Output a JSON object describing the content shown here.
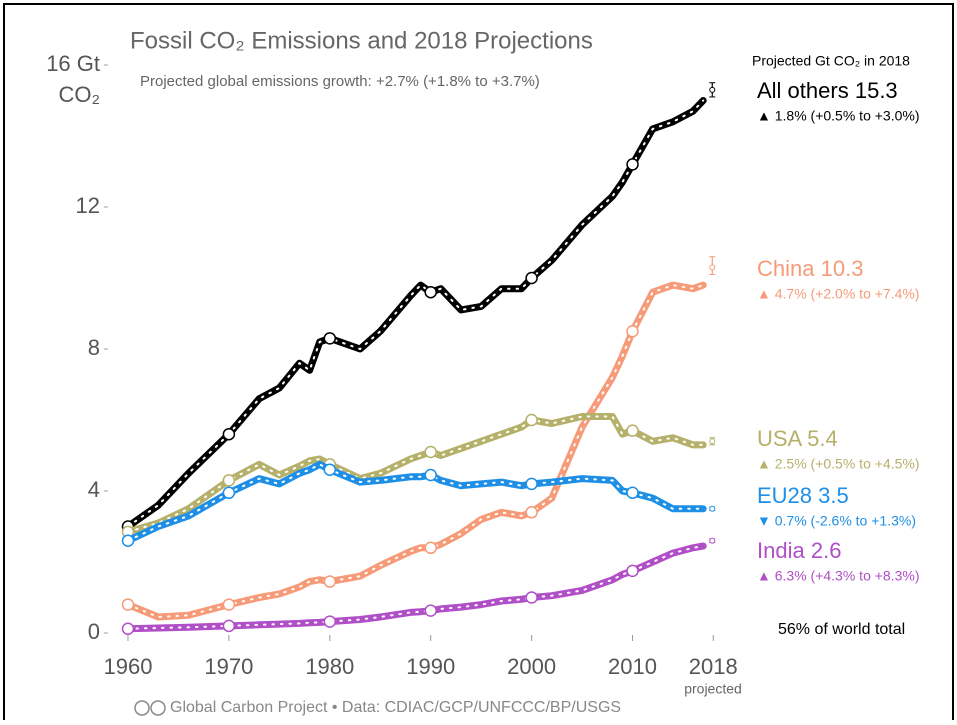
{
  "chart_data": {
    "type": "line",
    "title": "Fossil CO₂ Emissions and 2018 Projections",
    "subtitle": "Projected global emissions growth: +2.7% (+1.8% to +3.7%)",
    "y_unit": "CO₂",
    "legend_title": "Projected Gt CO₂ in 2018",
    "note": "56% of world total",
    "x_note": "projected",
    "footer": "Global Carbon Project  •  Data: CDIAC/GCP/UNFCCC/BP/USGS",
    "x": [
      1960,
      1963,
      1966,
      1970,
      1973,
      1975,
      1977,
      1978,
      1979,
      1980,
      1983,
      1985,
      1988,
      1989,
      1990,
      1991,
      1993,
      1995,
      1997,
      1999,
      2000,
      2002,
      2005,
      2008,
      2009,
      2010,
      2012,
      2014,
      2016,
      2017
    ],
    "xlim": [
      1958,
      2019.5
    ],
    "xticks": [
      1960,
      1970,
      1980,
      1990,
      2000,
      2010,
      2018
    ],
    "ylim": [
      0,
      16
    ],
    "yticks": [
      0,
      4,
      8,
      12,
      {
        "value": 16,
        "label": "16 Gt"
      }
    ],
    "series": [
      {
        "name": "All others",
        "color": "#000000",
        "projection": 15.3,
        "projection_range": [
          15.1,
          15.5
        ],
        "growth": "▲ 1.8% (+0.5% to +3.0%)",
        "values": [
          3.0,
          3.6,
          4.5,
          5.6,
          6.6,
          6.9,
          7.6,
          7.4,
          8.2,
          8.3,
          8.0,
          8.5,
          9.5,
          9.8,
          9.6,
          9.7,
          9.1,
          9.2,
          9.7,
          9.7,
          10.0,
          10.5,
          11.5,
          12.3,
          12.7,
          13.2,
          14.2,
          14.4,
          14.7,
          15.0
        ]
      },
      {
        "name": "China",
        "color": "#f79a78",
        "projection": 10.3,
        "projection_range": [
          10.1,
          10.6
        ],
        "growth": "▲ 4.7% (+2.0% to +7.4%)",
        "values": [
          0.8,
          0.45,
          0.5,
          0.8,
          1.0,
          1.1,
          1.3,
          1.45,
          1.5,
          1.45,
          1.6,
          1.9,
          2.3,
          2.4,
          2.4,
          2.5,
          2.8,
          3.2,
          3.4,
          3.3,
          3.4,
          3.8,
          5.8,
          7.2,
          7.8,
          8.5,
          9.6,
          9.8,
          9.7,
          9.8
        ]
      },
      {
        "name": "USA",
        "color": "#b5b06a",
        "projection": 5.4,
        "projection_range": [
          5.3,
          5.5
        ],
        "growth": "▲ 2.5% (+0.5% to +4.5%)",
        "values": [
          2.85,
          3.1,
          3.5,
          4.3,
          4.75,
          4.45,
          4.7,
          4.85,
          4.9,
          4.75,
          4.35,
          4.5,
          4.9,
          5.0,
          5.1,
          5.0,
          5.2,
          5.4,
          5.6,
          5.8,
          6.0,
          5.9,
          6.1,
          6.1,
          5.6,
          5.7,
          5.4,
          5.5,
          5.3,
          5.3
        ]
      },
      {
        "name": "EU28",
        "color": "#1e8fe6",
        "projection": 3.5,
        "projection_range": [
          3.45,
          3.55
        ],
        "growth": "▼ 0.7% (-2.6% to +1.3%)",
        "values": [
          2.6,
          3.0,
          3.3,
          3.95,
          4.35,
          4.2,
          4.5,
          4.6,
          4.75,
          4.6,
          4.25,
          4.3,
          4.4,
          4.4,
          4.45,
          4.3,
          4.15,
          4.2,
          4.25,
          4.15,
          4.2,
          4.25,
          4.35,
          4.3,
          4.0,
          3.95,
          3.8,
          3.5,
          3.5,
          3.5
        ]
      },
      {
        "name": "India",
        "color": "#b04fc7",
        "projection": 2.6,
        "projection_range": [
          2.55,
          2.65
        ],
        "growth": "▲ 6.3% (+4.3% to +8.3%)",
        "values": [
          0.12,
          0.14,
          0.16,
          0.2,
          0.23,
          0.25,
          0.27,
          0.29,
          0.3,
          0.32,
          0.38,
          0.45,
          0.58,
          0.6,
          0.63,
          0.68,
          0.73,
          0.8,
          0.9,
          0.95,
          1.0,
          1.05,
          1.2,
          1.5,
          1.65,
          1.75,
          2.0,
          2.25,
          2.4,
          2.45
        ]
      }
    ]
  }
}
